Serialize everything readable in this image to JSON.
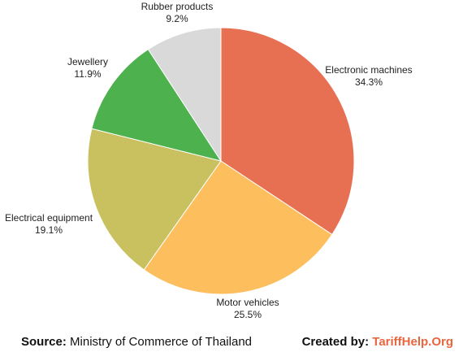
{
  "chart_data": {
    "type": "pie",
    "title": "",
    "slices": [
      {
        "label": "Electronic machines",
        "value": 34.3,
        "value_label": "34.3%",
        "color": "#E87052"
      },
      {
        "label": "Motor vehicles",
        "value": 25.5,
        "value_label": "25.5%",
        "color": "#FDBF5E"
      },
      {
        "label": "Electrical equipment",
        "value": 19.1,
        "value_label": "19.1%",
        "color": "#C9C060"
      },
      {
        "label": "Jewellery",
        "value": 11.9,
        "value_label": "11.9%",
        "color": "#4DB14E"
      },
      {
        "label": "Rubber products",
        "value": 9.2,
        "value_label": "9.2%",
        "color": "#D9D9D9"
      }
    ],
    "start": "top",
    "direction": "clockwise",
    "legend": "none"
  },
  "footer": {
    "source_prefix": "Source:",
    "source_text": "Ministry of Commerce of Thailand",
    "created_prefix": "Created by",
    "created_colon": ":",
    "created_brand": "TariffHelp.Org",
    "brand_color": "#E8663F"
  }
}
